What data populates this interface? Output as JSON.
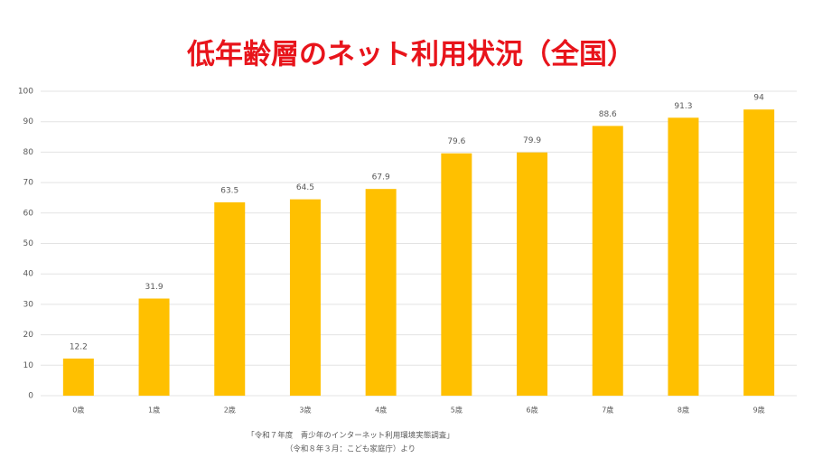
{
  "chart_data": {
    "type": "bar",
    "title": "低年齢層のネット利用状況（全国）",
    "categories": [
      "0歳",
      "1歳",
      "2歳",
      "3歳",
      "4歳",
      "5歳",
      "6歳",
      "7歳",
      "8歳",
      "9歳"
    ],
    "values": [
      12.2,
      31.9,
      63.5,
      64.5,
      67.9,
      79.6,
      79.9,
      88.6,
      91.3,
      94
    ],
    "color": "#ffc000",
    "ylim": [
      0,
      100
    ],
    "yticks": [
      0,
      10,
      20,
      30,
      40,
      50,
      60,
      70,
      80,
      90,
      100
    ],
    "grid": true,
    "source": [
      "「令和７年度　青少年のインターネット利用環境実態調査」",
      "（令和８年３月：こども家庭庁）より"
    ]
  }
}
